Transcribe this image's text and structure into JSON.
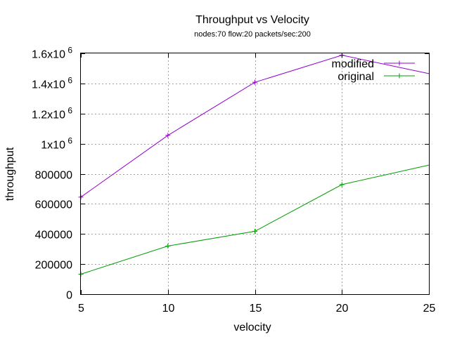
{
  "chart_data": {
    "type": "line",
    "title": "Throughput vs Velocity",
    "subtitle": "nodes:70  flow:20  packets/sec:200",
    "xlabel": "velocity",
    "ylabel": "throughput",
    "x": [
      5,
      10,
      15,
      20,
      25
    ],
    "xlim": [
      5,
      25
    ],
    "ylim": [
      0,
      1600000
    ],
    "x_ticks": [
      "5",
      "10",
      "15",
      "20",
      "25"
    ],
    "y_ticks": [
      {
        "value": 0,
        "label": "0",
        "exp": ""
      },
      {
        "value": 200000,
        "label": "200000",
        "exp": ""
      },
      {
        "value": 400000,
        "label": "400000",
        "exp": ""
      },
      {
        "value": 600000,
        "label": "600000",
        "exp": ""
      },
      {
        "value": 800000,
        "label": "800000",
        "exp": ""
      },
      {
        "value": 1000000,
        "label": "1x10",
        "exp": "6"
      },
      {
        "value": 1200000,
        "label": "1.2x10",
        "exp": "6"
      },
      {
        "value": 1400000,
        "label": "1.4x10",
        "exp": "6"
      },
      {
        "value": 1600000,
        "label": "1.6x10",
        "exp": "6"
      }
    ],
    "grid": true,
    "legend_position": "top-right",
    "series": [
      {
        "name": "modified",
        "color": "#9400d3",
        "values": [
          645000,
          1055000,
          1408000,
          1588000,
          1465000
        ]
      },
      {
        "name": "original",
        "color": "#009e00",
        "values": [
          133000,
          320000,
          418000,
          728000,
          858000
        ]
      }
    ]
  }
}
